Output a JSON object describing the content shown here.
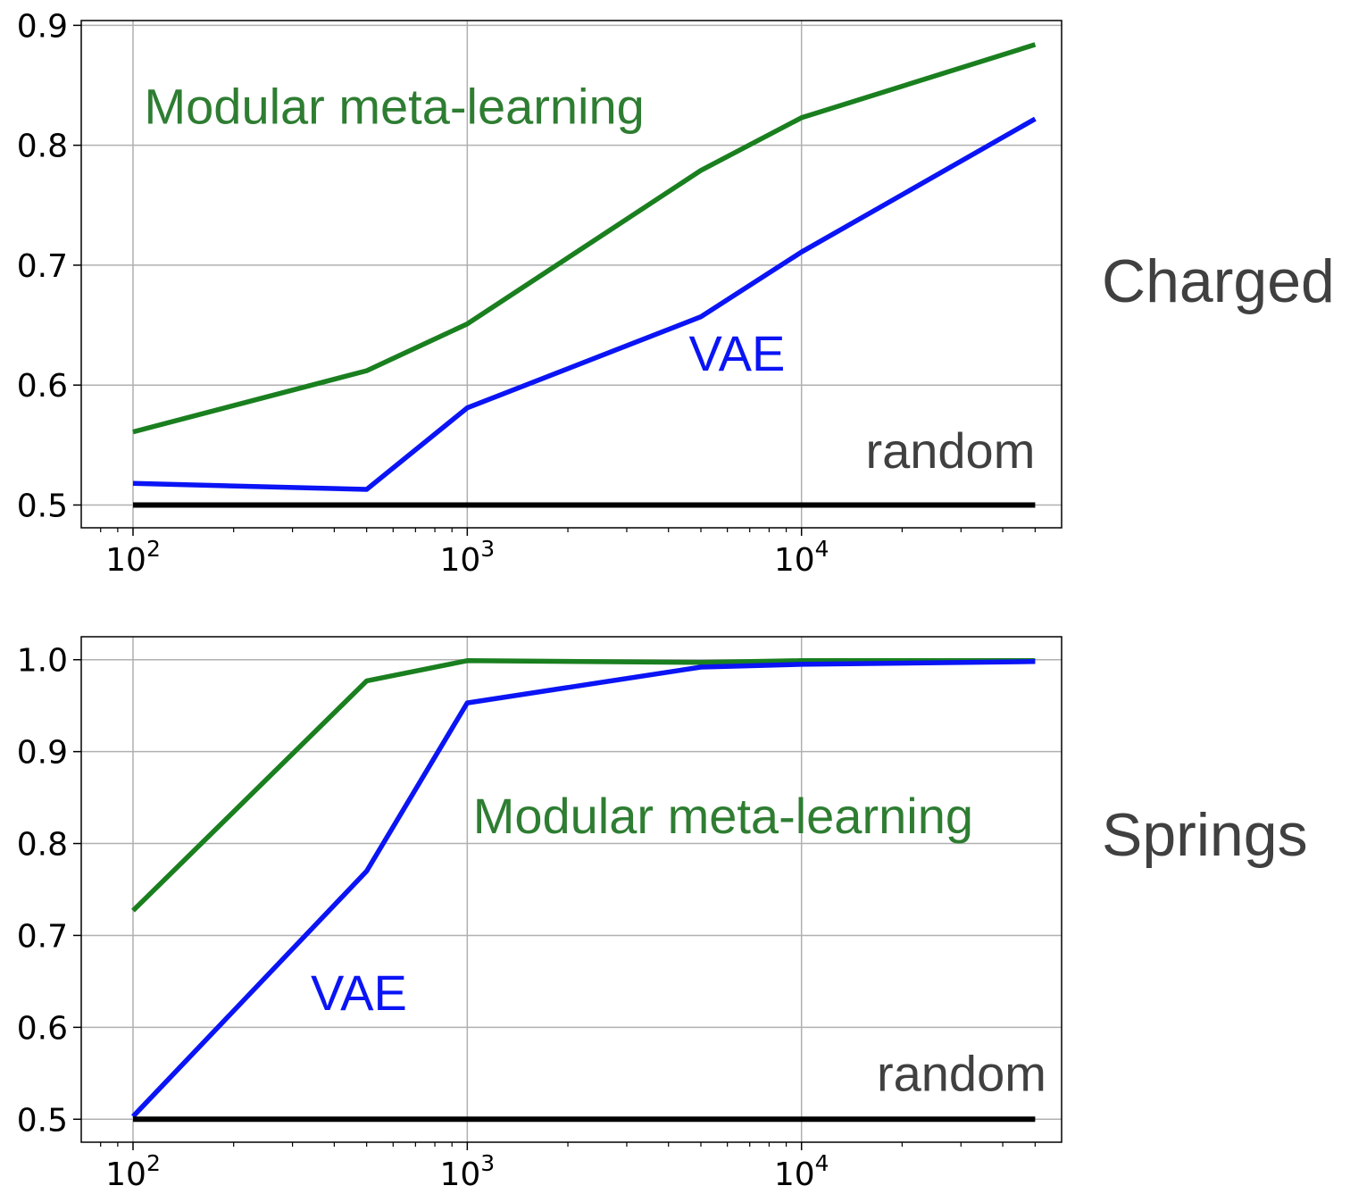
{
  "chart_data": [
    {
      "type": "line",
      "xscale": "log",
      "xlim": [
        70,
        60000
      ],
      "ylim": [
        0.481,
        0.904
      ],
      "xticks": [
        100,
        1000,
        10000
      ],
      "xtick_labels": [
        {
          "base": "10",
          "exp": "2"
        },
        {
          "base": "10",
          "exp": "3"
        },
        {
          "base": "10",
          "exp": "4"
        }
      ],
      "yticks": [
        0.5,
        0.6,
        0.7,
        0.8,
        0.9
      ],
      "ytick_labels": [
        "0.5",
        "0.6",
        "0.7",
        "0.8",
        "0.9"
      ],
      "grid": true,
      "row_label": "Charged",
      "series": [
        {
          "name": "Modular meta-learning",
          "color": "#1a7f1f",
          "x": [
            100,
            500,
            1000,
            5000,
            10000,
            50000
          ],
          "y": [
            0.561,
            0.612,
            0.651,
            0.779,
            0.823,
            0.884
          ]
        },
        {
          "name": "VAE",
          "color": "#0a14f5",
          "x": [
            100,
            500,
            1000,
            5000,
            10000,
            50000
          ],
          "y": [
            0.518,
            0.513,
            0.581,
            0.657,
            0.711,
            0.822
          ]
        },
        {
          "name": "random",
          "color": "#000000",
          "x": [
            100,
            50000
          ],
          "y": [
            0.5,
            0.5
          ]
        }
      ],
      "annotations": [
        {
          "text": "Modular meta-learning",
          "color": "#2e7d32",
          "x": 108,
          "y": 0.818,
          "anchor": "start"
        },
        {
          "text": "VAE",
          "color": "#0a14f5",
          "x": 4600,
          "y": 0.612,
          "anchor": "start"
        },
        {
          "text": "random",
          "color": "#404040",
          "x": 50000,
          "y": 0.531,
          "anchor": "end"
        }
      ]
    },
    {
      "type": "line",
      "xscale": "log",
      "xlim": [
        70,
        60000
      ],
      "ylim": [
        0.475,
        1.025
      ],
      "xticks": [
        100,
        1000,
        10000
      ],
      "xtick_labels": [
        {
          "base": "10",
          "exp": "2"
        },
        {
          "base": "10",
          "exp": "3"
        },
        {
          "base": "10",
          "exp": "4"
        }
      ],
      "yticks": [
        0.5,
        0.6,
        0.7,
        0.8,
        0.9,
        1.0
      ],
      "ytick_labels": [
        "0.5",
        "0.6",
        "0.7",
        "0.8",
        "0.9",
        "1.0"
      ],
      "grid": true,
      "row_label": "Springs",
      "series": [
        {
          "name": "Modular meta-learning",
          "color": "#1a7f1f",
          "x": [
            100,
            500,
            1000,
            5000,
            10000,
            50000
          ],
          "y": [
            0.727,
            0.977,
            0.999,
            0.997,
            0.999,
            0.999
          ]
        },
        {
          "name": "VAE",
          "color": "#0a14f5",
          "x": [
            100,
            500,
            1000,
            5000,
            10000,
            50000
          ],
          "y": [
            0.503,
            0.77,
            0.953,
            0.992,
            0.995,
            0.998
          ]
        },
        {
          "name": "random",
          "color": "#000000",
          "x": [
            100,
            50000
          ],
          "y": [
            0.5,
            0.5
          ]
        }
      ],
      "annotations": [
        {
          "text": "Modular meta-learning",
          "color": "#2e7d32",
          "x": 1040,
          "y": 0.811,
          "anchor": "start"
        },
        {
          "text": "VAE",
          "color": "#0a14f5",
          "x": 340,
          "y": 0.619,
          "anchor": "start"
        },
        {
          "text": "random",
          "color": "#404040",
          "x": 54000,
          "y": 0.531,
          "anchor": "end"
        }
      ]
    }
  ]
}
